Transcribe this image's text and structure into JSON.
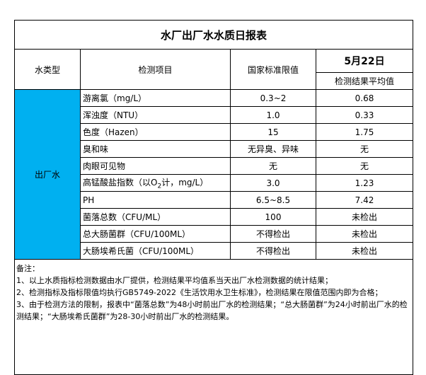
{
  "title": "水厂出厂水水质日报表",
  "headers": {
    "type": "水类型",
    "item": "检测项目",
    "limit": "国家标准限值",
    "date": "5月22日",
    "result": "检测结果平均值"
  },
  "water_type": "出厂水",
  "type_color": "#00B0F0",
  "rows": [
    {
      "item": "游离氯（mg/L）",
      "limit": "0.3~2",
      "result": "0.68"
    },
    {
      "item": "浑浊度（NTU）",
      "limit": "1.0",
      "result": "0.33"
    },
    {
      "item": "色度（Hazen）",
      "limit": "15",
      "result": "1.75"
    },
    {
      "item": "臭和味",
      "limit": "无异臭、异味",
      "result": "无"
    },
    {
      "item": "肉眼可见物",
      "limit": "无",
      "result": "无"
    },
    {
      "item_prefix": "高锰酸盐指数（以O",
      "item_sub": "2",
      "item_suffix": "计，mg/L）",
      "limit": "3.0",
      "result": "1.23"
    },
    {
      "item": "PH",
      "limit": "6.5~8.5",
      "result": "7.42"
    },
    {
      "item": "菌落总数（CFU/ML）",
      "limit": "100",
      "result": "未检出"
    },
    {
      "item": "总大肠菌群（CFU/100ML）",
      "limit": "不得检出",
      "result": "未检出"
    },
    {
      "item": "大肠埃希氏菌（CFU/100ML）",
      "limit": "不得检出",
      "result": "未检出"
    }
  ],
  "notes": {
    "heading": "备注：",
    "lines": [
      "1、以上水质指标检测数据由水厂提供，检测结果平均值系当天出厂水检测数据的统计结果；",
      "2、检测指标及指标限值均执行GB5749-2022《生活饮用水卫生标准》，检测结果在限值范围内即为合格；",
      "3、由于检测方法的限制，报表中“菌落总数”为48小时前出厂水的检测结果；“总大肠菌群”为24小时前出厂水的检测结果；“大肠埃希氏菌群”为28-30小时前出厂水的检测结果。"
    ]
  }
}
